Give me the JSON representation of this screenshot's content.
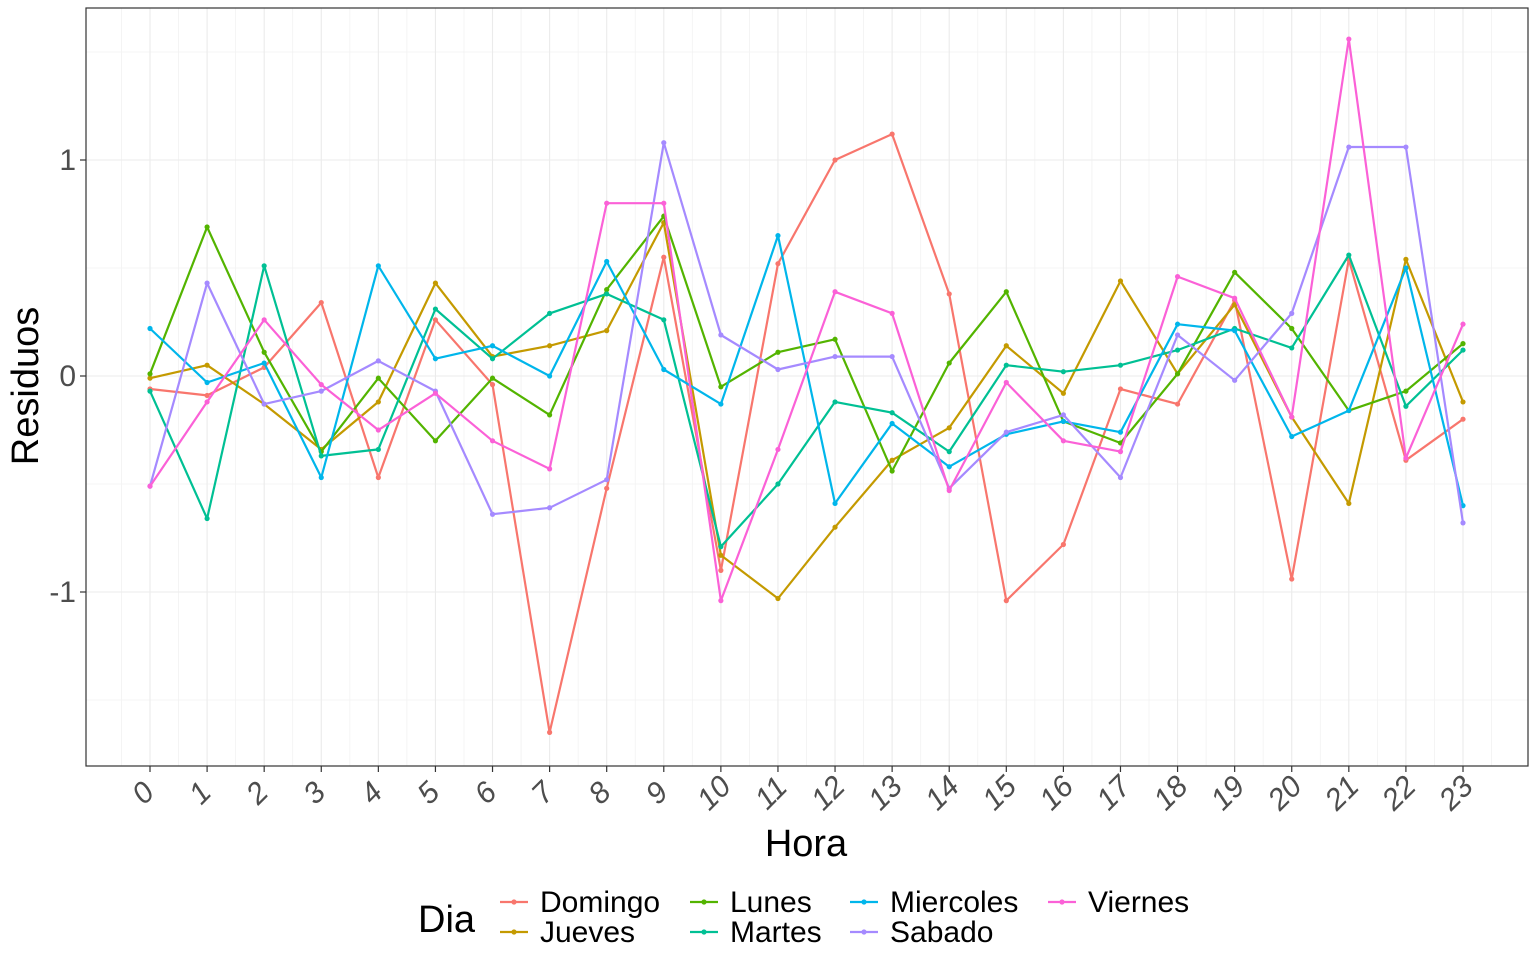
{
  "chart_data": {
    "type": "line",
    "xlabel": "Hora",
    "ylabel": "Residuos",
    "x": [
      0,
      1,
      2,
      3,
      4,
      5,
      6,
      7,
      8,
      9,
      10,
      11,
      12,
      13,
      14,
      15,
      16,
      17,
      18,
      19,
      20,
      21,
      22,
      23
    ],
    "x_tick_labels": [
      "0",
      "1",
      "2",
      "3",
      "4",
      "5",
      "6",
      "7",
      "8",
      "9",
      "10",
      "11",
      "12",
      "13",
      "14",
      "15",
      "16",
      "17",
      "18",
      "19",
      "20",
      "21",
      "22",
      "23"
    ],
    "y_ticks": [
      -1,
      0,
      1
    ],
    "y_tick_labels": [
      "-1",
      "0",
      "1"
    ],
    "ylim": [
      -1.8,
      1.71
    ],
    "grid": true,
    "legend": {
      "title": "Dia",
      "position": "bottom"
    },
    "series": [
      {
        "name": "Domingo",
        "color": "#F8766D",
        "values": [
          -0.06,
          -0.09,
          0.04,
          0.34,
          -0.47,
          0.26,
          -0.04,
          -1.65,
          -0.52,
          0.55,
          -0.9,
          0.52,
          1.0,
          1.12,
          0.38,
          -1.04,
          -0.78,
          -0.06,
          -0.13,
          0.35,
          -0.94,
          0.54,
          -0.39,
          -0.2
        ]
      },
      {
        "name": "Jueves",
        "color": "#C49A00",
        "values": [
          -0.01,
          0.05,
          -0.13,
          -0.34,
          -0.12,
          0.43,
          0.09,
          0.14,
          0.21,
          0.71,
          -0.83,
          -1.03,
          -0.7,
          -0.39,
          -0.24,
          0.14,
          -0.08,
          0.44,
          0.01,
          0.33,
          -0.19,
          -0.59,
          0.54,
          -0.12
        ]
      },
      {
        "name": "Lunes",
        "color": "#53B400",
        "values": [
          0.01,
          0.69,
          0.11,
          -0.35,
          -0.01,
          -0.3,
          -0.01,
          -0.18,
          0.4,
          0.74,
          -0.05,
          0.11,
          0.17,
          -0.44,
          0.06,
          0.39,
          -0.21,
          -0.31,
          0.01,
          0.48,
          0.22,
          -0.16,
          -0.07,
          0.15
        ]
      },
      {
        "name": "Martes",
        "color": "#00C094",
        "values": [
          -0.07,
          -0.66,
          0.51,
          -0.37,
          -0.34,
          0.31,
          0.08,
          0.29,
          0.38,
          0.26,
          -0.79,
          -0.5,
          -0.12,
          -0.17,
          -0.35,
          0.05,
          0.02,
          0.05,
          0.12,
          0.22,
          0.13,
          0.56,
          -0.14,
          0.12
        ]
      },
      {
        "name": "Miercoles",
        "color": "#00B6EB",
        "values": [
          0.22,
          -0.03,
          0.06,
          -0.47,
          0.51,
          0.08,
          0.14,
          0.0,
          0.53,
          0.03,
          -0.13,
          0.65,
          -0.59,
          -0.22,
          -0.42,
          -0.27,
          -0.21,
          -0.26,
          0.24,
          0.21,
          -0.28,
          -0.16,
          0.5,
          -0.6
        ]
      },
      {
        "name": "Sabado",
        "color": "#A58AFF",
        "values": [
          -0.51,
          0.43,
          -0.13,
          -0.07,
          0.07,
          -0.07,
          -0.64,
          -0.61,
          -0.48,
          1.08,
          0.19,
          0.03,
          0.09,
          0.09,
          -0.52,
          -0.26,
          -0.18,
          -0.47,
          0.19,
          -0.02,
          0.29,
          1.06,
          1.06,
          -0.68
        ]
      },
      {
        "name": "Viernes",
        "color": "#FB61D7",
        "values": [
          -0.51,
          -0.12,
          0.26,
          -0.04,
          -0.25,
          -0.08,
          -0.3,
          -0.43,
          0.8,
          0.8,
          -1.04,
          -0.34,
          0.39,
          0.29,
          -0.53,
          -0.03,
          -0.3,
          -0.35,
          0.46,
          0.36,
          -0.19,
          1.56,
          -0.38,
          0.24
        ]
      }
    ]
  }
}
